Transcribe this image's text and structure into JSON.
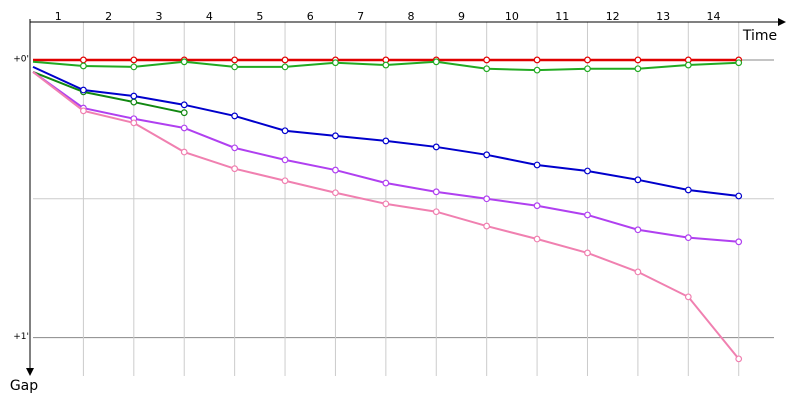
{
  "chart_data": {
    "type": "line",
    "x_label": "Time",
    "y_label": "Gap",
    "x": [
      0,
      1,
      2,
      3,
      4,
      5,
      6,
      7,
      8,
      9,
      10,
      11,
      12,
      13,
      14
    ],
    "xlim": [
      0,
      14.7
    ],
    "xticks": [
      {
        "value": 0.5,
        "label": "1"
      },
      {
        "value": 1.5,
        "label": "2"
      },
      {
        "value": 2.5,
        "label": "3"
      },
      {
        "value": 3.5,
        "label": "4"
      },
      {
        "value": 4.5,
        "label": "5"
      },
      {
        "value": 5.5,
        "label": "6"
      },
      {
        "value": 6.5,
        "label": "7"
      },
      {
        "value": 7.5,
        "label": "8"
      },
      {
        "value": 8.5,
        "label": "9"
      },
      {
        "value": 9.5,
        "label": "10"
      },
      {
        "value": 10.5,
        "label": "11"
      },
      {
        "value": 11.5,
        "label": "12"
      },
      {
        "value": 12.5,
        "label": "13"
      },
      {
        "value": 13.5,
        "label": "14"
      }
    ],
    "ylim": [
      -8.2,
      68.3
    ],
    "yticks": [
      {
        "value": 0,
        "label": "+0'"
      },
      {
        "value": 30,
        "label": null
      },
      {
        "value": 60,
        "label": "+1'"
      }
    ],
    "inverted_y": true,
    "grid": true,
    "series": [
      {
        "color": "#e00000",
        "values": [
          0,
          0,
          0,
          0,
          0,
          0,
          0,
          0,
          0,
          0,
          0,
          0,
          0,
          0,
          0
        ]
      },
      {
        "color": "#22aa22",
        "values": [
          0.4,
          1.3,
          1.5,
          0.4,
          1.5,
          1.5,
          0.6,
          1.1,
          0.4,
          1.9,
          2.2,
          1.9,
          1.9,
          1.1,
          0.6
        ]
      },
      {
        "color": "#118811",
        "values": [
          2.6,
          6.9,
          9.1,
          11.4,
          null,
          null,
          null,
          null,
          null,
          null,
          null,
          null,
          null,
          null,
          null
        ]
      },
      {
        "color": "#0000cc",
        "values": [
          1.5,
          6.5,
          7.8,
          9.7,
          12.1,
          15.3,
          16.4,
          17.5,
          18.8,
          20.5,
          22.7,
          24.0,
          25.9,
          28.1,
          29.4
        ]
      },
      {
        "color": "#b040f0",
        "values": [
          2.6,
          10.4,
          12.7,
          14.7,
          19.0,
          21.6,
          23.8,
          26.6,
          28.5,
          30.0,
          31.5,
          33.5,
          36.7,
          38.4,
          39.3
        ]
      },
      {
        "color": "#f080b0",
        "values": [
          2.6,
          11.0,
          13.6,
          19.9,
          23.5,
          26.1,
          28.7,
          31.1,
          32.8,
          35.9,
          38.7,
          41.7,
          45.8,
          51.2,
          64.6
        ]
      }
    ]
  }
}
